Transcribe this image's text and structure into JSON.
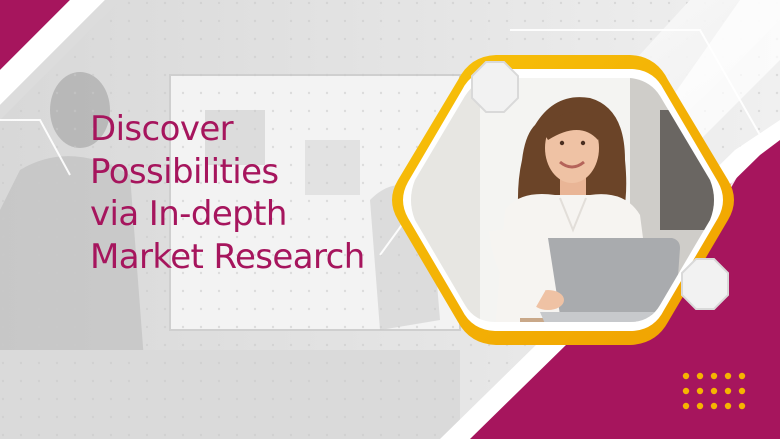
{
  "banner": {
    "headline_lines": [
      "Discover",
      "Possibilities",
      "via In-depth",
      "Market Research"
    ]
  },
  "colors": {
    "magenta": "#a6155d",
    "gold": "#f5b400",
    "background": "#ececec",
    "dots": "#f5b400"
  },
  "icons": {
    "hexagon_small": "hexagon-icon",
    "dot_grid": "dot-grid-icon"
  }
}
